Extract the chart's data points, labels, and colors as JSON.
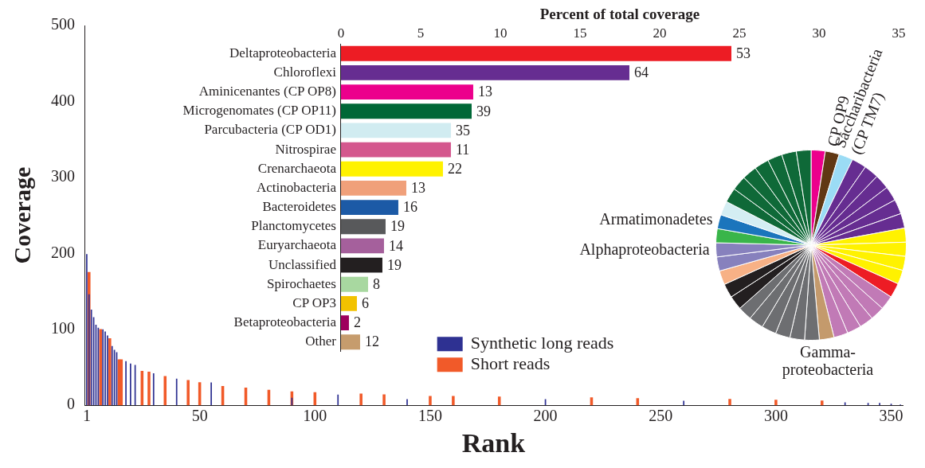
{
  "chart_data": [
    {
      "type": "bar",
      "xlabel": "Rank",
      "ylabel": "Coverage",
      "x": [
        1,
        2,
        3,
        4,
        5,
        6,
        7,
        8,
        9,
        10,
        11,
        12,
        13,
        14,
        15,
        16,
        18,
        20,
        22,
        25,
        28,
        30,
        35,
        40,
        45,
        50,
        55,
        60,
        70,
        80,
        90,
        100,
        110,
        120,
        130,
        140,
        150,
        160,
        180,
        200,
        220,
        240,
        260,
        280,
        300,
        320,
        330,
        340,
        345,
        350,
        354
      ],
      "series": [
        {
          "name": "Synthetic long reads",
          "color": "#2e3192",
          "values": [
            199,
            146,
            126,
            116,
            106,
            102,
            null,
            100,
            97,
            92,
            null,
            78,
            73,
            70,
            null,
            null,
            58,
            55,
            53,
            null,
            null,
            42,
            null,
            35,
            null,
            null,
            30,
            null,
            null,
            null,
            10,
            null,
            14,
            null,
            null,
            8,
            null,
            null,
            null,
            8,
            null,
            null,
            6,
            null,
            null,
            null,
            4,
            3,
            3,
            2,
            1
          ]
        },
        {
          "name": "Short reads",
          "color": "#f15a29",
          "values": [
            null,
            175,
            null,
            null,
            null,
            null,
            100,
            null,
            null,
            null,
            88,
            null,
            null,
            null,
            60,
            60,
            null,
            null,
            null,
            45,
            44,
            null,
            38,
            null,
            33,
            30,
            null,
            25,
            23,
            20,
            18,
            17,
            null,
            15,
            14,
            null,
            12,
            12,
            11,
            null,
            10,
            9,
            null,
            8,
            7,
            6,
            null,
            null,
            null,
            null,
            null
          ]
        }
      ],
      "xlim": [
        0,
        355
      ],
      "ylim": [
        0,
        500
      ],
      "xticks": [
        1,
        50,
        100,
        150,
        200,
        250,
        300,
        350
      ],
      "yticks": [
        0,
        100,
        200,
        300,
        400,
        500
      ],
      "legend": "bottom"
    },
    {
      "type": "bar",
      "orientation": "horizontal",
      "xlabel": "Percent of total coverage",
      "categories": [
        "Deltaproteobacteria",
        "Chloroflexi",
        "Aminicenantes (CP OP8)",
        "Microgenomates (CP OP11)",
        "Parcubacteria (CP OD1)",
        "Nitrospirae",
        "Crenarchaeota",
        "Actinobacteria",
        "Bacteroidetes",
        "Planctomycetes",
        "Euryarchaeota",
        "Unclassified",
        "Spirochaetes",
        "CP OP3",
        "Betaproteobacteria",
        "Other"
      ],
      "values": [
        24.5,
        18.1,
        8.3,
        8.2,
        6.9,
        6.9,
        6.4,
        4.1,
        3.6,
        2.8,
        2.7,
        2.6,
        1.7,
        1.0,
        0.5,
        1.2
      ],
      "colors": [
        "#ed1c24",
        "#662d91",
        "#ec008c",
        "#006837",
        "#d1ecf1",
        "#d4578e",
        "#fff200",
        "#f0a07a",
        "#1c5aa6",
        "#58595b",
        "#a5609c",
        "#231f20",
        "#a8d8a0",
        "#f2c200",
        "#9e005d",
        "#c69c6d"
      ],
      "annotations": [
        {
          "text": "53",
          "x": 24.5,
          "y": "Deltaproteobacteria"
        },
        {
          "text": "64",
          "x": 18.1,
          "y": "Chloroflexi"
        },
        {
          "text": "13",
          "x": 8.3,
          "y": "Aminicenantes (CP OP8)"
        },
        {
          "text": "39",
          "x": 8.2,
          "y": "Microgenomates (CP OP11)"
        },
        {
          "text": "35",
          "x": 6.9,
          "y": "Parcubacteria (CP OD1)"
        },
        {
          "text": "11",
          "x": 6.9,
          "y": "Nitrospirae"
        },
        {
          "text": "22",
          "x": 6.4,
          "y": "Crenarchaeota"
        },
        {
          "text": "13",
          "x": 4.1,
          "y": "Actinobacteria"
        },
        {
          "text": "16",
          "x": 3.6,
          "y": "Bacteroidetes"
        },
        {
          "text": "19",
          "x": 2.8,
          "y": "Planctomycetes"
        },
        {
          "text": "14",
          "x": 2.7,
          "y": "Euryarchaeota"
        },
        {
          "text": "19",
          "x": 2.6,
          "y": "Unclassified"
        },
        {
          "text": "8",
          "x": 1.7,
          "y": "Spirochaetes"
        },
        {
          "text": "6",
          "x": 1.0,
          "y": "CP OP3"
        },
        {
          "text": "2",
          "x": 0.5,
          "y": "Betaproteobacteria"
        },
        {
          "text": "12",
          "x": 1.2,
          "y": "Other"
        }
      ],
      "xlim": [
        0,
        35
      ],
      "xticks": [
        0,
        5,
        10,
        15,
        20,
        25,
        30,
        35
      ]
    },
    {
      "type": "pie",
      "categories": [
        null,
        "CP OP9",
        "Saccharibacteria (CP TM7)",
        null,
        null,
        null,
        null,
        null,
        null,
        null,
        null,
        null,
        null,
        null,
        null,
        null,
        null,
        null,
        null,
        "Gamma-proteobacteria",
        null,
        null,
        null,
        null,
        null,
        null,
        null,
        null,
        null,
        null,
        "Alphaproteobacteria",
        null,
        "Armatimonadetes",
        null,
        null,
        null,
        null,
        null,
        null,
        null,
        null
      ],
      "values": [
        2.4,
        2.4,
        2.4,
        2.5,
        2.5,
        2.5,
        2.5,
        2.5,
        2.5,
        2.4,
        2.4,
        2.4,
        2.4,
        2.5,
        2.4,
        2.4,
        2.4,
        2.4,
        2.4,
        2.5,
        2.5,
        2.5,
        2.5,
        2.5,
        2.5,
        2.4,
        2.4,
        2.4,
        2.4,
        2.4,
        2.4,
        2.4,
        2.4,
        2.4,
        2.5,
        2.5,
        2.5,
        2.5,
        2.5,
        2.5,
        2.5
      ],
      "colors": [
        "#ec008c",
        "#603813",
        "#9bdcf5",
        "#662d91",
        "#662d91",
        "#662d91",
        "#662d91",
        "#662d91",
        "#662d91",
        "#fff200",
        "#fff200",
        "#fff200",
        "#fff200",
        "#ed1c24",
        "#c17ab6",
        "#c17ab6",
        "#c17ab6",
        "#c17ab6",
        "#c17ab6",
        "#c49a6c",
        "#6d6e71",
        "#6d6e71",
        "#6d6e71",
        "#6d6e71",
        "#6d6e71",
        "#6d6e71",
        "#231f20",
        "#231f20",
        "#f7b186",
        "#8781bd",
        "#8781bd",
        "#39b54a",
        "#1b75bc",
        "#d4eef3",
        "#0f6938",
        "#0f6938",
        "#0f6938",
        "#0f6938",
        "#0f6938",
        "#0f6938",
        "#0f6938"
      ]
    }
  ]
}
